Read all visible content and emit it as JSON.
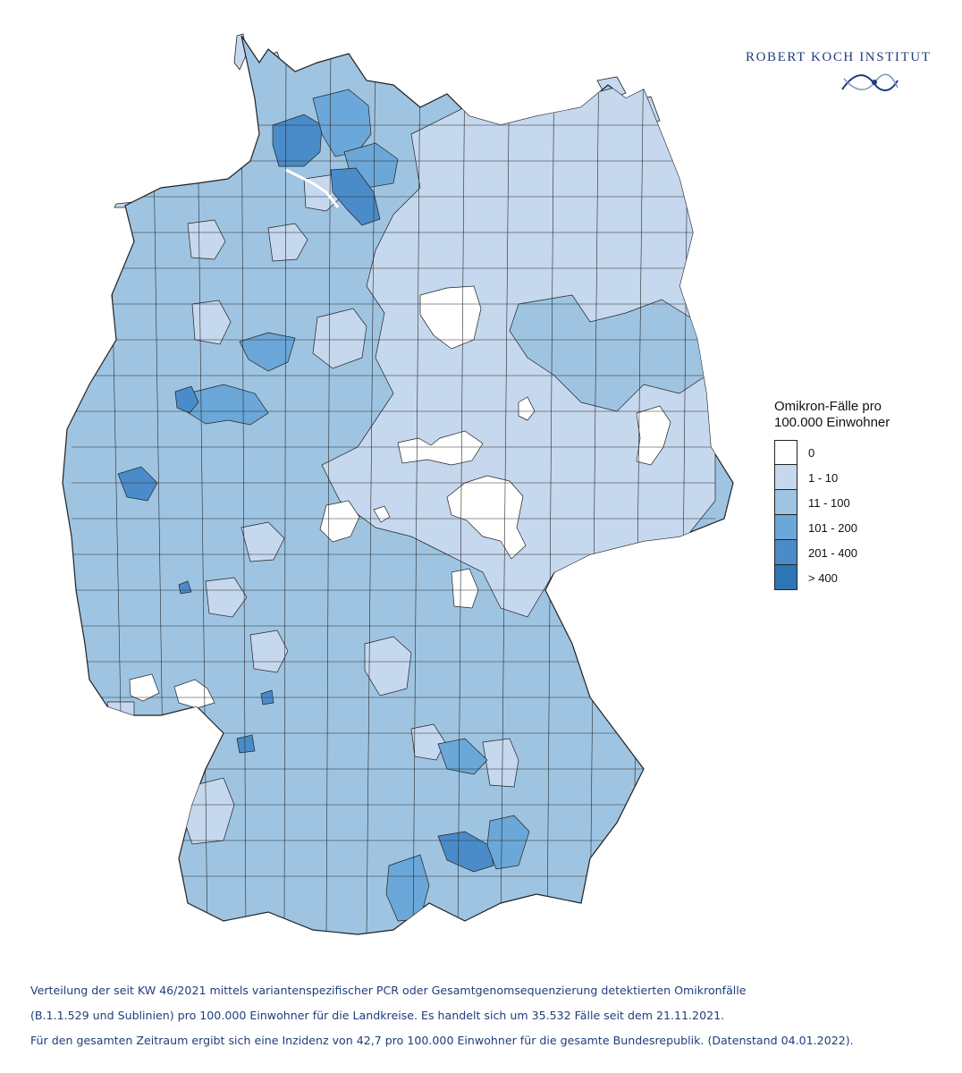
{
  "logo": {
    "text": "ROBERT KOCH INSTITUT",
    "brand_color": "#1f3d7a",
    "mark_icon": "rki-wave-mark-icon"
  },
  "legend": {
    "title_line1": "Omikron-Fälle pro",
    "title_line2": "100.000 Einwohner",
    "items": [
      {
        "label": "0",
        "color": "#ffffff"
      },
      {
        "label": "1 - 10",
        "color": "#c6d8ee"
      },
      {
        "label": "11 - 100",
        "color": "#9ec4e2"
      },
      {
        "label": "101 - 200",
        "color": "#6ba7d8"
      },
      {
        "label": "201 - 400",
        "color": "#4a8cc9"
      },
      {
        "label": "> 400",
        "color": "#2f74b7"
      }
    ]
  },
  "caption": {
    "line1": "Verteilung der seit KW 46/2021 mittels variantenspezifischer PCR oder Gesamtgenomsequenzierung detektierten Omikronfälle",
    "line2": "(B.1.1.529 und Sublinien) pro 100.000 Einwohner für die Landkreise. Es handelt sich um 35.532 Fälle seit dem 21.11.2021.",
    "line3": "Für den gesamten Zeitraum ergibt sich eine Inzidenz von 42,7 pro 100.000 Einwohner für die gesamte Bundesrepublik. (Datenstand 04.01.2022)."
  },
  "map": {
    "border_color": "#222222"
  }
}
